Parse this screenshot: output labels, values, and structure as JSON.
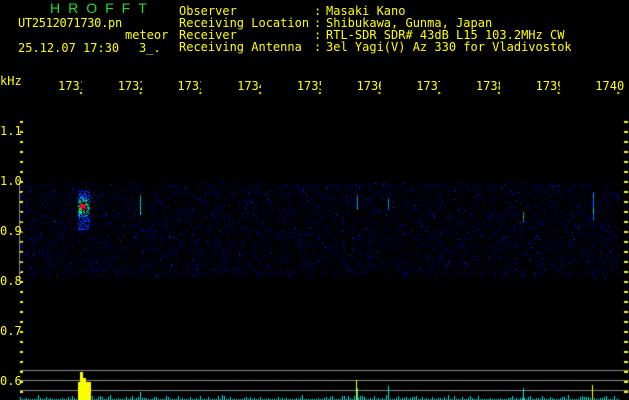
{
  "header": {
    "logo": "HROFFT",
    "filename": "UT2512071730.pn",
    "mode": "meteor",
    "datetime": "25.12.07 17:30",
    "count": "3_.",
    "fields": [
      {
        "label": "Observer",
        "value": "Masaki Kano"
      },
      {
        "label": "Receiving Location",
        "value": "Shibukawa, Gunma, Japan"
      },
      {
        "label": "Receiver",
        "value": "RTL-SDR SDR# 43dB L15 103.2MHz CW"
      },
      {
        "label": "Receiving Antenna",
        "value": "3el Yagi(V) Az 330 for Vladivostok"
      }
    ]
  },
  "axes": {
    "y_unit": "kHz",
    "y_ticks": [
      "1.1",
      "1.0",
      "0.9",
      "0.8",
      "0.7",
      "0.6"
    ],
    "x_ticks": [
      "1731",
      "1732",
      "1733",
      "1734",
      "1735",
      "1736",
      "1737",
      "1738",
      "1739",
      "1740"
    ]
  },
  "colors": {
    "text": "#ffff00",
    "logo": "#22dd22",
    "noise": "#0000cc",
    "meteor": "#ff0000",
    "bars": "#00e5e5",
    "peak": "#ffff00",
    "grid": "#888888"
  }
}
